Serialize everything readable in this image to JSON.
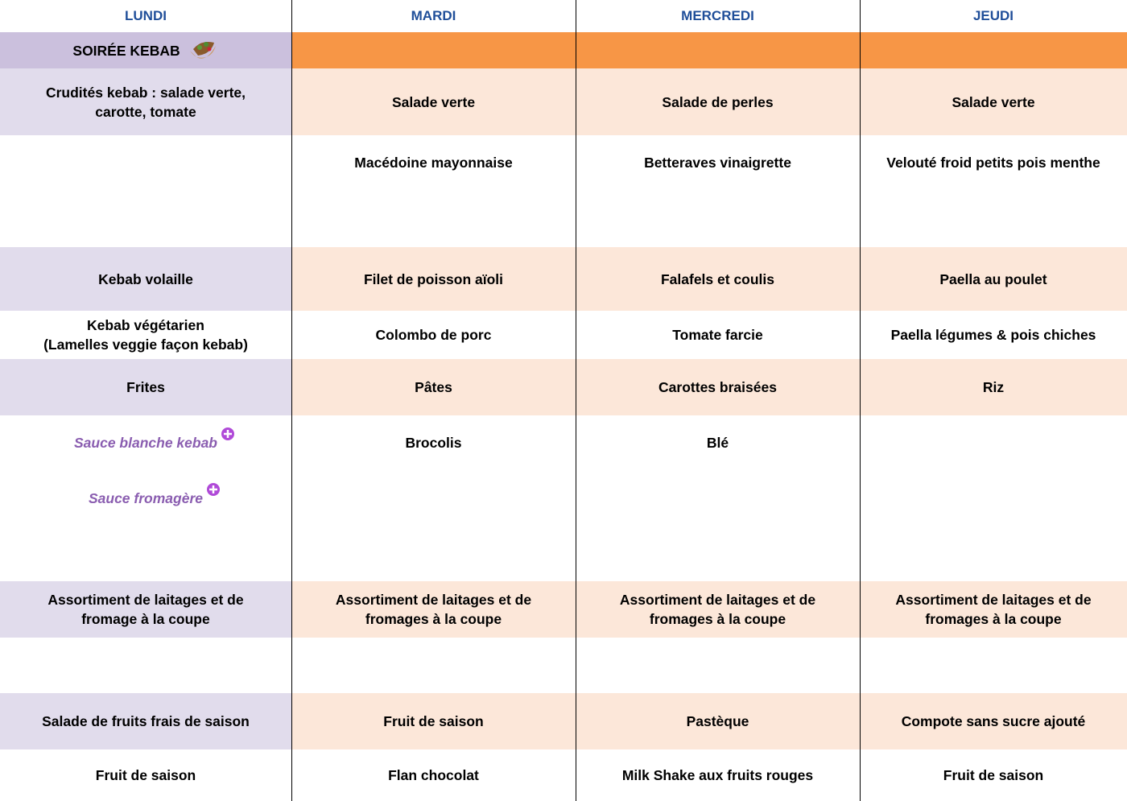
{
  "header": {
    "days": [
      "LUNDI",
      "MARDI",
      "MERCREDI",
      "JEUDI"
    ]
  },
  "table": {
    "rows": [
      [
        "SOIRÉE KEBAB",
        null,
        null,
        null
      ],
      [
        "Crudités kebab : salade verte,\ncarotte, tomate",
        "Salade verte",
        "Salade de perles",
        "Salade verte"
      ],
      [
        null,
        "Macédoine mayonnaise",
        "Betteraves vinaigrette",
        "Velouté froid petits pois menthe"
      ],
      [
        "Kebab volaille",
        "Filet de poisson aïoli",
        "Falafels et coulis",
        "Paella au poulet"
      ],
      [
        "Kebab végétarien\n(Lamelles veggie façon kebab)",
        "Colombo de porc",
        "Tomate farcie",
        "Paella légumes & pois chiches"
      ],
      [
        "Frites",
        "Pâtes",
        "Carottes braisées",
        "Riz"
      ],
      [
        [
          "Sauce blanche kebab",
          "Sauce fromagère"
        ],
        "Brocolis",
        "Blé",
        null
      ],
      [
        "Assortiment de laitages et de\nfromage à la coupe",
        "Assortiment de laitages et de\nfromages à la coupe",
        "Assortiment de laitages et de\nfromages à la coupe",
        "Assortiment de laitages et de\nfromages à la coupe"
      ],
      [
        null,
        null,
        null,
        null
      ],
      [
        "Salade de fruits frais de saison",
        "Fruit de saison",
        "Pastèque",
        "Compote sans sucre ajouté"
      ],
      [
        "Fruit de saison",
        "Flan chocolat",
        "Milk Shake aux fruits rouges",
        "Fruit de saison"
      ]
    ]
  }
}
